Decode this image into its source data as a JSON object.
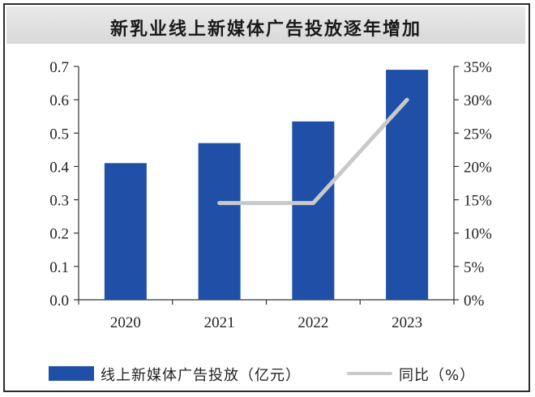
{
  "chart_data": {
    "type": "bar+line",
    "title": "新乳业线上新媒体广告投放逐年增加",
    "categories": [
      "2020",
      "2021",
      "2022",
      "2023"
    ],
    "series": [
      {
        "name": "线上新媒体广告投放（亿元）",
        "kind": "bar",
        "axis": "left",
        "color": "#1f4fa6",
        "values": [
          0.41,
          0.47,
          0.535,
          0.69
        ]
      },
      {
        "name": "同比（%）",
        "kind": "line",
        "axis": "right",
        "color": "#c9c9c9",
        "values": [
          null,
          14.5,
          14.5,
          30
        ]
      }
    ],
    "y_left": {
      "min": 0,
      "max": 0.7,
      "ticks": [
        "0.0",
        "0.1",
        "0.2",
        "0.3",
        "0.4",
        "0.5",
        "0.6",
        "0.7"
      ]
    },
    "y_right": {
      "min": 0,
      "max": 35,
      "ticks": [
        "0%",
        "5%",
        "10%",
        "15%",
        "20%",
        "25%",
        "30%",
        "35%"
      ]
    },
    "legend_position": "bottom",
    "grid": false
  }
}
